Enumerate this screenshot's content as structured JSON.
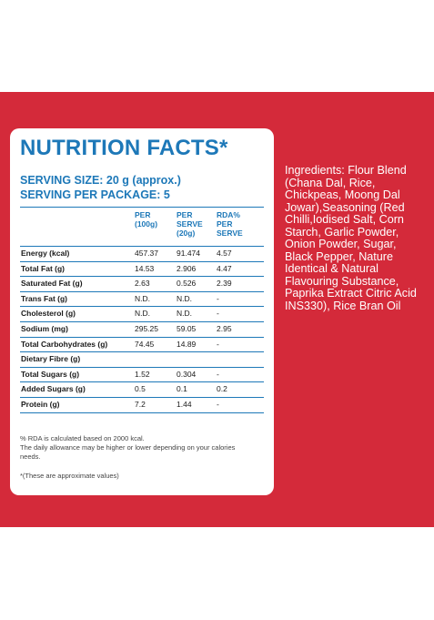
{
  "title": "NUTRITION FACTS*",
  "serving_size": "SERVING SIZE: 20 g (approx.)",
  "serving_per_package": "SERVING PER PACKAGE: 5",
  "headers": {
    "per100": "PER\n(100g)",
    "perserve": "PER\nSERVE\n(20g)",
    "rda": "RDA%\nPER\nSERVE"
  },
  "rows": [
    {
      "label": "Energy (kcal)",
      "per100": "457.37",
      "perserve": "91.474",
      "rda": "4.57"
    },
    {
      "label": "Total Fat (g)",
      "per100": "14.53",
      "perserve": "2.906",
      "rda": "4.47"
    },
    {
      "label": "Saturated Fat (g)",
      "per100": "2.63",
      "perserve": "0.526",
      "rda": "2.39"
    },
    {
      "label": "Trans Fat (g)",
      "per100": "N.D.",
      "perserve": "N.D.",
      "rda": "-"
    },
    {
      "label": "Cholesterol (g)",
      "per100": "N.D.",
      "perserve": "N.D.",
      "rda": "-"
    },
    {
      "label": "Sodium (mg)",
      "per100": "295.25",
      "perserve": "59.05",
      "rda": "2.95"
    },
    {
      "label": "Total Carbohydrates (g)",
      "per100": "74.45",
      "perserve": "14.89",
      "rda": "-"
    },
    {
      "label": "Dietary Fibre (g)",
      "per100": "",
      "perserve": "",
      "rda": ""
    },
    {
      "label": "Total Sugars (g)",
      "per100": "1.52",
      "perserve": "0.304",
      "rda": "-"
    },
    {
      "label": "Added Sugars (g)",
      "per100": "0.5",
      "perserve": "0.1",
      "rda": "0.2"
    },
    {
      "label": "Protein (g)",
      "per100": "7.2",
      "perserve": "1.44",
      "rda": "-"
    }
  ],
  "footnote_rda": "% RDA is calculated based on 2000 kcal.",
  "footnote_allowance": "The daily allowance may be higher or lower depending on your calories needs.",
  "footnote_approx": "*(These are approximate values)",
  "ingredients": "Ingredients: Flour Blend (Chana Dal, Rice, Chickpeas, Moong Dal Jowar),Seasoning (Red Chilli,Iodised Salt, Corn Starch, Garlic Powder, Onion Powder, Sugar, Black Pepper, Nature Identical & Natural Flavouring Substance, Paprika Extract Citric Acid INS330), Rice Bran Oil",
  "colors": {
    "background_red": "#d42a3a",
    "title_blue": "#1d78b8"
  }
}
